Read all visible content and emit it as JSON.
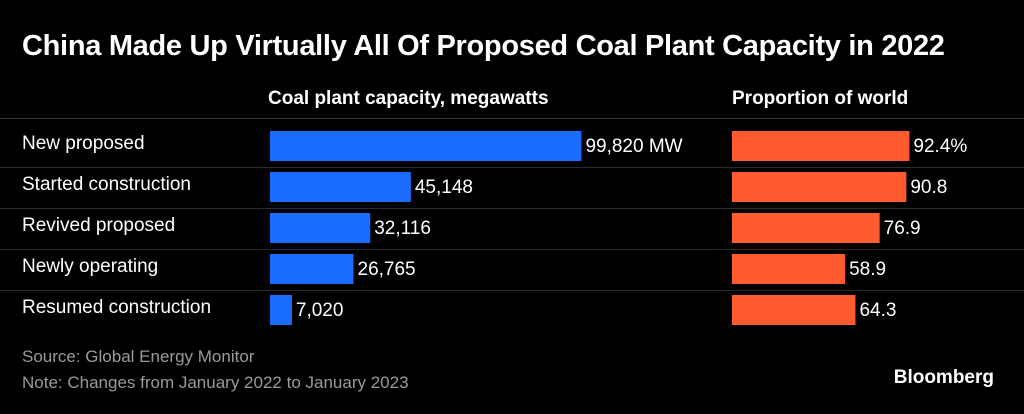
{
  "title": "China Made Up Virtually All Of Proposed Coal Plant Capacity in 2022",
  "colors": {
    "background": "#000000",
    "capacity_bar": "#1a6cff",
    "proportion_bar": "#ff5b2e",
    "text": "#ffffff",
    "muted": "#9a9a9a"
  },
  "chart_data": {
    "type": "bar",
    "title": "China Made Up Virtually All Of Proposed Coal Plant Capacity in 2022",
    "categories": [
      "New proposed",
      "Started construction",
      "Revived proposed",
      "Newly operating",
      "Resumed construction"
    ],
    "series": [
      {
        "name": "Coal plant capacity, megawatts",
        "values": [
          99820,
          45148,
          32116,
          26765,
          7020
        ],
        "labels": [
          "99,820 MW",
          "45,148",
          "32,116",
          "26,765",
          "7,020"
        ],
        "xlim": [
          0,
          100000
        ]
      },
      {
        "name": "Proportion of world",
        "values": [
          92.4,
          90.8,
          76.9,
          58.9,
          64.3
        ],
        "labels": [
          "92.4%",
          "90.8",
          "76.9",
          "58.9",
          "64.3"
        ],
        "xlim": [
          0,
          100
        ]
      }
    ],
    "orientation": "horizontal",
    "grid": false,
    "legend": "none"
  },
  "footer": {
    "source": "Source: Global Energy Monitor",
    "note": "Note: Changes from January 2022 to January 2023",
    "brand": "Bloomberg"
  }
}
